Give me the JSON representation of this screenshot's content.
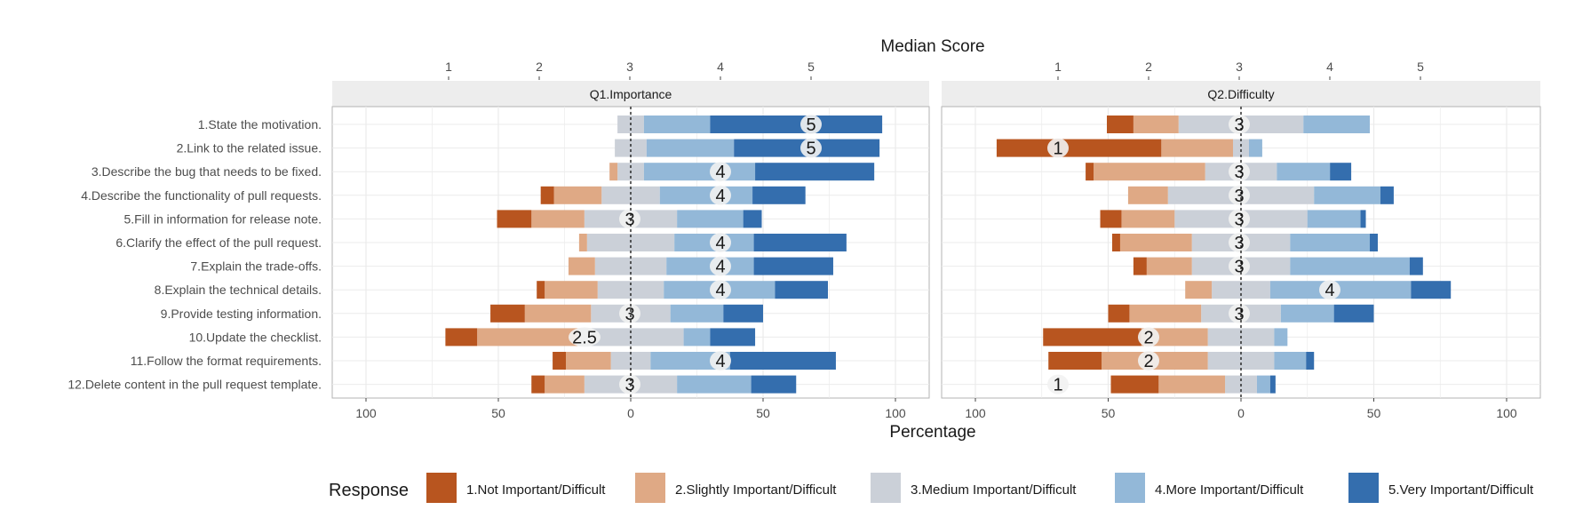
{
  "chart_data": {
    "type": "diverging-stacked-bar",
    "top_axis_title": "Median Score",
    "x_axis_title": "Percentage",
    "legend_title": "Response",
    "median_ticks": [
      1,
      2,
      3,
      4,
      5
    ],
    "x_range": [
      -100,
      100
    ],
    "x_ticks": [
      -100,
      -50,
      0,
      50,
      100
    ],
    "x_tick_labels": [
      "100",
      "50",
      "0",
      "50",
      "100"
    ],
    "categories": [
      "1.State the motivation.",
      "2.Link to the related issue.",
      "3.Describe the bug that needs to be fixed.",
      "4.Describe the functionality of pull requests.",
      "5.Fill in information for release note.",
      "6.Clarify the effect of the pull request.",
      "7.Explain the trade-offs.",
      "8.Explain the technical details.",
      "9.Provide testing information.",
      "10.Update the checklist.",
      "11.Follow the format requirements.",
      "12.Delete content in the pull request template."
    ],
    "responses": [
      {
        "name": "1.Not Important/Difficult",
        "color": "#b8551f"
      },
      {
        "name": "2.Slightly Important/Difficult",
        "color": "#dfa985"
      },
      {
        "name": "3.Medium Important/Difficult",
        "color": "#cbd0d8"
      },
      {
        "name": "4.More Important/Difficult",
        "color": "#93b8d8"
      },
      {
        "name": "5.Very Important/Difficult",
        "color": "#346eae"
      }
    ],
    "panels": [
      {
        "title": "Q1.Importance",
        "rows": [
          {
            "segments": [
              0,
              0,
              10,
              25,
              65
            ],
            "median": "5"
          },
          {
            "segments": [
              0,
              0,
              12,
              33,
              55
            ],
            "median": "5"
          },
          {
            "segments": [
              0,
              3,
              10,
              42,
              45
            ],
            "median": "4"
          },
          {
            "segments": [
              5,
              18,
              22,
              35,
              20
            ],
            "median": "4"
          },
          {
            "segments": [
              13,
              20,
              35,
              25,
              7
            ],
            "median": "3"
          },
          {
            "segments": [
              0,
              3,
              33,
              30,
              35
            ],
            "median": "4"
          },
          {
            "segments": [
              0,
              10,
              27,
              33,
              30
            ],
            "median": "4"
          },
          {
            "segments": [
              3,
              20,
              25,
              42,
              20
            ],
            "median": "4"
          },
          {
            "segments": [
              13,
              25,
              30,
              20,
              15
            ],
            "median": "3"
          },
          {
            "segments": [
              12,
              38,
              40,
              10,
              17
            ],
            "median": "2.5"
          },
          {
            "segments": [
              5,
              17,
              15,
              30,
              40
            ],
            "median": "4"
          },
          {
            "segments": [
              5,
              15,
              35,
              28,
              17
            ],
            "median": "3"
          }
        ]
      },
      {
        "title": "Q2.Difficulty",
        "rows": [
          {
            "segments": [
              10,
              17,
              47,
              25,
              0
            ],
            "median": "3"
          },
          {
            "segments": [
              62,
              27,
              6,
              5,
              0
            ],
            "median": "1"
          },
          {
            "segments": [
              3,
              42,
              27,
              20,
              8
            ],
            "median": "3"
          },
          {
            "segments": [
              0,
              15,
              55,
              25,
              5
            ],
            "median": "3"
          },
          {
            "segments": [
              8,
              20,
              50,
              20,
              2
            ],
            "median": "3"
          },
          {
            "segments": [
              3,
              27,
              37,
              30,
              3
            ],
            "median": "3"
          },
          {
            "segments": [
              5,
              17,
              37,
              45,
              5
            ],
            "median": "3"
          },
          {
            "segments": [
              0,
              10,
              22,
              53,
              15
            ],
            "median": "4"
          },
          {
            "segments": [
              8,
              27,
              30,
              20,
              15
            ],
            "median": "3"
          },
          {
            "segments": [
              37,
              25,
              25,
              5,
              0
            ],
            "median": "2"
          },
          {
            "segments": [
              20,
              40,
              25,
              12,
              3
            ],
            "median": "2"
          },
          {
            "segments": [
              18,
              25,
              12,
              5,
              2
            ],
            "median": "1"
          }
        ]
      }
    ]
  }
}
